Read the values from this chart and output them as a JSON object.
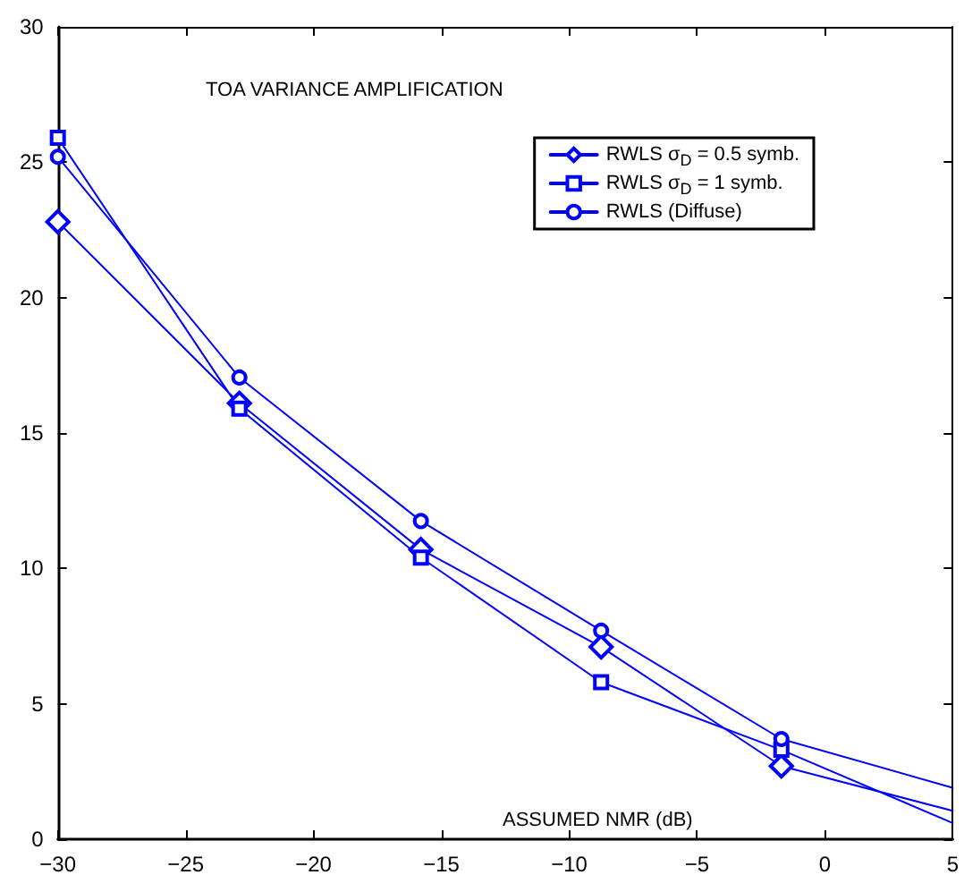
{
  "chart_data": {
    "type": "line",
    "title": "TOA VARIANCE AMPLIFICATION",
    "xlabel": "ASSUMED NMR (dB)",
    "x": [
      -30,
      -22.9,
      -15.8,
      -8.75,
      -1.7,
      5
    ],
    "series": [
      {
        "name": "RWLS σ$_{D}$ = 0.5 symb.",
        "color": "#0000ff",
        "marker": "diamond",
        "values": [
          22.8,
          16.1,
          10.7,
          7.1,
          2.7,
          1.05
        ]
      },
      {
        "name": "RWLS σ$_{D}$ = 1 symb.",
        "color": "#0000ff",
        "marker": "square",
        "values": [
          25.9,
          15.9,
          10.4,
          5.8,
          3.3,
          0.6
        ]
      },
      {
        "name": "RWLS (Diffuse)",
        "color": "#0000ff",
        "marker": "circle",
        "values": [
          25.2,
          17.05,
          11.75,
          7.7,
          3.7,
          1.9
        ]
      }
    ],
    "xlim": [
      -30,
      5
    ],
    "xticks": [
      -30,
      -25,
      -20,
      -15,
      -10,
      -5,
      0,
      5
    ],
    "ylim": [
      0,
      30
    ],
    "yticks": [
      0,
      5,
      10,
      15,
      20,
      25,
      30
    ],
    "grid": false,
    "legend": "top right",
    "line_style": "solid"
  }
}
